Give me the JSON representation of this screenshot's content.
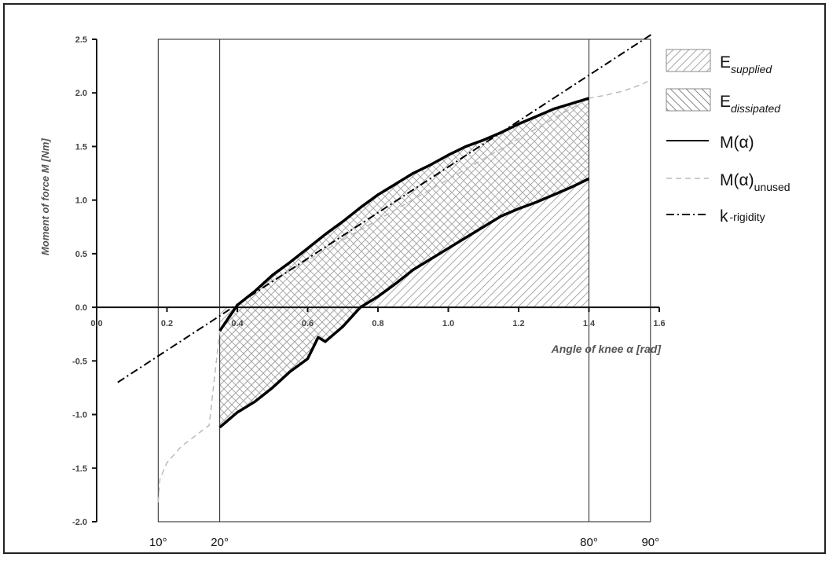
{
  "chart_data": {
    "type": "line",
    "xlabel": "Angle of knee α [rad]",
    "ylabel": "Moment of force M [Nm]",
    "xlim": [
      0.0,
      1.6
    ],
    "ylim": [
      -2.0,
      2.5
    ],
    "x_ticks": [
      "0.0",
      "0.2",
      "0.4",
      "0.6",
      "0.8",
      "1.0",
      "1.2",
      "1.4",
      "1.6"
    ],
    "y_ticks": [
      "2.5",
      "2.0",
      "1.5",
      "1.0",
      "0.5",
      "0.0",
      "-0.5",
      "-1.0",
      "-1.5",
      "-2.0"
    ],
    "degree_markers": [
      {
        "label": "10°",
        "x": 0.175
      },
      {
        "label": "20°",
        "x": 0.35
      },
      {
        "label": "80°",
        "x": 1.4
      },
      {
        "label": "90°",
        "x": 1.575
      }
    ],
    "legend": [
      {
        "key": "supplied",
        "base": "E",
        "sub": "supplied",
        "style": "hatch-forward"
      },
      {
        "key": "dissipated",
        "base": "E",
        "sub": "dissipated",
        "style": "hatch-backward"
      },
      {
        "key": "m",
        "base": "M(α)",
        "sub": "",
        "style": "solid"
      },
      {
        "key": "m_unused",
        "base": "M(α)",
        "sub": "unused",
        "style": "dashed"
      },
      {
        "key": "k",
        "base": "k",
        "sub": "-rigidity",
        "style": "dashdot"
      }
    ],
    "legend_position": "right",
    "series": [
      {
        "name": "M(α)",
        "part": "loading",
        "x": [
          0.35,
          0.4,
          0.45,
          0.5,
          0.55,
          0.6,
          0.65,
          0.7,
          0.75,
          0.8,
          0.85,
          0.9,
          0.95,
          1.0,
          1.05,
          1.1,
          1.15,
          1.2,
          1.25,
          1.3,
          1.35,
          1.4
        ],
        "y": [
          -0.22,
          0.02,
          0.15,
          0.3,
          0.42,
          0.55,
          0.68,
          0.8,
          0.93,
          1.05,
          1.15,
          1.25,
          1.33,
          1.42,
          1.5,
          1.56,
          1.63,
          1.71,
          1.78,
          1.85,
          1.9,
          1.95
        ]
      },
      {
        "name": "M(α)",
        "part": "unloading",
        "x": [
          0.35,
          0.4,
          0.45,
          0.5,
          0.55,
          0.6,
          0.63,
          0.65,
          0.7,
          0.75,
          0.8,
          0.85,
          0.9,
          0.95,
          1.0,
          1.05,
          1.1,
          1.15,
          1.2,
          1.25,
          1.3,
          1.35,
          1.4
        ],
        "y": [
          -1.12,
          -0.98,
          -0.88,
          -0.75,
          -0.6,
          -0.48,
          -0.28,
          -0.32,
          -0.18,
          0.0,
          0.1,
          0.22,
          0.35,
          0.45,
          0.55,
          0.65,
          0.75,
          0.85,
          0.92,
          0.98,
          1.05,
          1.12,
          1.2
        ]
      },
      {
        "name": "M(α)unused",
        "x": [
          0.175,
          0.18,
          0.2,
          0.24,
          0.28,
          0.32,
          0.35,
          0.38,
          0.4,
          0.45,
          0.5,
          1.4,
          1.45,
          1.5,
          1.55,
          1.575
        ],
        "y": [
          -1.82,
          -1.6,
          -1.45,
          -1.3,
          -1.2,
          -1.1,
          -0.22,
          -0.05,
          0.02,
          0.15,
          0.25,
          1.95,
          1.98,
          2.02,
          2.08,
          2.12
        ]
      },
      {
        "name": "k-rigidity",
        "x": [
          0.06,
          1.58
        ],
        "y": [
          -0.7,
          2.55
        ]
      }
    ],
    "grid": false
  }
}
